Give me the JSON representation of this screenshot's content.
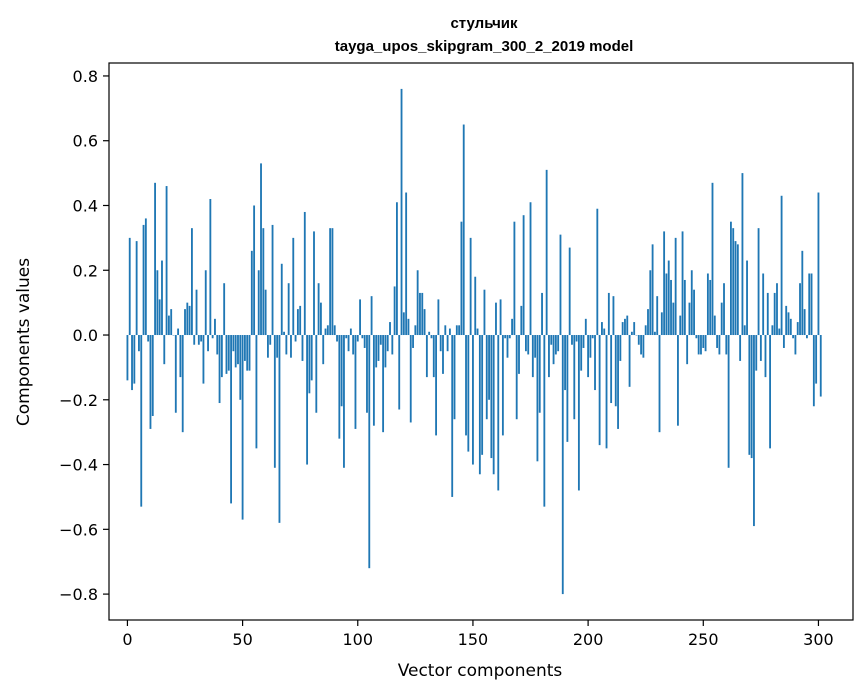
{
  "chart_data": {
    "type": "bar",
    "title": "стульчик",
    "subtitle": "tayga_upos_skipgram_300_2_2019 model",
    "xlabel": "Vector components",
    "ylabel": "Components values",
    "xlim": [
      -8,
      315
    ],
    "ylim": [
      -0.88,
      0.84
    ],
    "xticks": [
      0,
      50,
      100,
      150,
      200,
      250,
      300
    ],
    "yticks": [
      -0.8,
      -0.6,
      -0.4,
      -0.2,
      0.0,
      0.2,
      0.4,
      0.6,
      0.8
    ],
    "xtick_labels": [
      "0",
      "50",
      "100",
      "150",
      "200",
      "250",
      "300"
    ],
    "ytick_labels": [
      "−0.8",
      "−0.6",
      "−0.4",
      "−0.2",
      "0.0",
      "0.2",
      "0.4",
      "0.6",
      "0.8"
    ],
    "grid": false,
    "bar_color": "#1f77b4",
    "x_start": 0,
    "values": [
      -0.14,
      0.3,
      -0.17,
      -0.15,
      0.29,
      -0.05,
      -0.53,
      0.34,
      0.36,
      -0.02,
      -0.29,
      -0.25,
      0.47,
      0.2,
      0.11,
      0.23,
      -0.09,
      0.46,
      0.06,
      0.08,
      0.0,
      -0.24,
      0.02,
      -0.13,
      -0.3,
      0.08,
      0.1,
      0.09,
      0.33,
      -0.03,
      0.14,
      -0.03,
      -0.02,
      -0.15,
      0.2,
      -0.05,
      0.42,
      -0.01,
      0.05,
      -0.06,
      -0.21,
      -0.13,
      0.16,
      -0.12,
      -0.11,
      -0.52,
      -0.05,
      -0.1,
      -0.09,
      -0.2,
      -0.57,
      -0.08,
      -0.11,
      -0.11,
      0.26,
      0.4,
      -0.35,
      0.2,
      0.53,
      0.33,
      0.14,
      -0.07,
      -0.03,
      0.34,
      -0.41,
      -0.07,
      -0.58,
      0.22,
      0.01,
      -0.06,
      0.16,
      -0.07,
      0.3,
      -0.02,
      0.08,
      0.09,
      -0.08,
      0.38,
      -0.4,
      -0.18,
      -0.14,
      0.32,
      -0.24,
      0.16,
      0.1,
      -0.09,
      0.02,
      0.03,
      0.33,
      0.33,
      0.03,
      -0.02,
      -0.32,
      -0.22,
      -0.41,
      -0.01,
      -0.05,
      0.02,
      -0.06,
      -0.29,
      -0.02,
      0.11,
      -0.01,
      -0.04,
      -0.24,
      -0.72,
      0.12,
      -0.28,
      -0.1,
      -0.08,
      -0.03,
      -0.3,
      -0.1,
      -0.05,
      0.04,
      -0.06,
      0.15,
      0.41,
      -0.23,
      0.76,
      0.07,
      0.44,
      0.05,
      -0.27,
      -0.04,
      0.03,
      0.2,
      0.13,
      0.13,
      0.08,
      -0.13,
      0.01,
      -0.01,
      -0.13,
      -0.31,
      0.11,
      -0.05,
      -0.12,
      0.03,
      -0.05,
      0.02,
      -0.5,
      -0.26,
      0.03,
      0.03,
      0.35,
      0.65,
      -0.31,
      -0.36,
      0.3,
      -0.4,
      0.18,
      0.02,
      -0.43,
      -0.37,
      0.14,
      -0.26,
      -0.2,
      -0.38,
      -0.43,
      0.1,
      -0.48,
      0.11,
      -0.31,
      -0.01,
      -0.07,
      -0.01,
      0.05,
      0.35,
      -0.26,
      -0.12,
      0.09,
      0.37,
      -0.05,
      -0.06,
      0.41,
      -0.13,
      -0.07,
      -0.39,
      -0.24,
      0.13,
      -0.53,
      0.51,
      -0.13,
      -0.03,
      -0.09,
      -0.06,
      -0.05,
      0.31,
      -0.8,
      -0.17,
      -0.33,
      0.27,
      -0.03,
      -0.26,
      -0.02,
      -0.48,
      -0.11,
      -0.04,
      0.05,
      -0.13,
      -0.07,
      -0.01,
      -0.17,
      0.39,
      -0.34,
      0.04,
      0.02,
      -0.35,
      0.13,
      -0.21,
      0.12,
      -0.22,
      -0.29,
      -0.08,
      0.04,
      0.05,
      0.06,
      -0.16,
      0.01,
      0.04,
      0.0,
      -0.03,
      -0.06,
      -0.07,
      0.03,
      0.08,
      0.2,
      0.28,
      0.01,
      0.12,
      -0.3,
      0.07,
      0.32,
      0.19,
      0.23,
      0.17,
      0.1,
      0.3,
      -0.28,
      0.06,
      0.32,
      0.17,
      -0.09,
      0.1,
      0.2,
      0.14,
      -0.01,
      -0.06,
      -0.06,
      -0.04,
      -0.05,
      0.19,
      0.17,
      0.47,
      0.06,
      -0.04,
      -0.06,
      0.1,
      0.16,
      -0.06,
      -0.41,
      0.35,
      0.33,
      0.29,
      0.28,
      -0.08,
      0.5,
      0.03,
      0.23,
      -0.37,
      -0.38,
      -0.59,
      -0.11,
      0.33,
      -0.08,
      0.19,
      -0.13,
      0.13,
      -0.35,
      0.03,
      0.13,
      0.16,
      0.02,
      0.43,
      -0.04,
      0.09,
      0.07,
      0.05,
      -0.01,
      -0.06,
      0.04,
      0.16,
      0.26,
      0.08,
      -0.01,
      0.19,
      0.19,
      -0.22,
      -0.15,
      0.44,
      -0.19
    ]
  }
}
